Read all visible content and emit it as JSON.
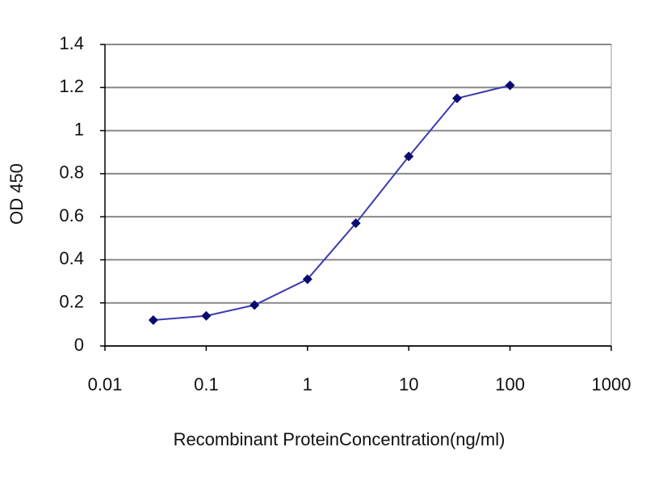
{
  "chart_data": {
    "type": "line",
    "x_label": "Recombinant ProteinConcentration(ng/ml)",
    "y_label": "OD 450",
    "x": [
      0.03,
      0.1,
      0.3,
      1,
      3,
      10,
      30,
      100
    ],
    "series": [
      {
        "color": "#3b3bb0",
        "marker_color": "#0a0a6e",
        "values": [
          0.12,
          0.14,
          0.19,
          0.31,
          0.57,
          0.88,
          1.15,
          1.21
        ]
      }
    ],
    "xscale": "log",
    "xlim": [
      0.01,
      1000
    ],
    "xticks": [
      0.01,
      0.1,
      1,
      10,
      100,
      1000
    ],
    "ylim": [
      0,
      1.4
    ],
    "yticks": [
      0,
      0.2,
      0.4,
      0.6,
      0.8,
      1,
      1.2,
      1.4
    ],
    "grid": true
  }
}
